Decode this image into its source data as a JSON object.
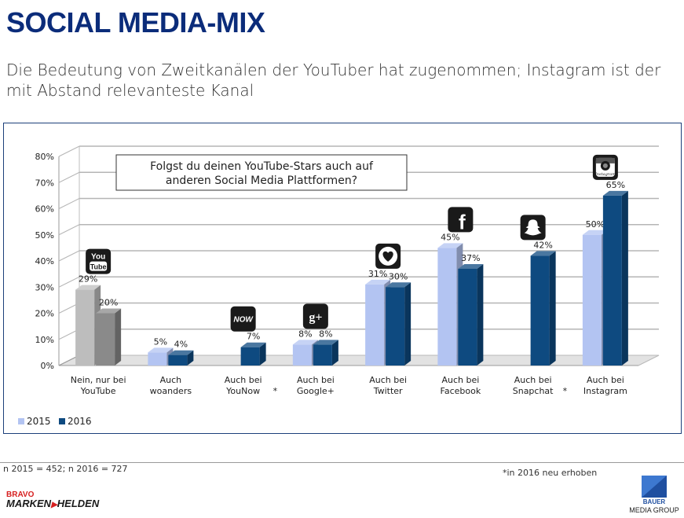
{
  "header": {
    "title": "SOCIAL MEDIA-MIX",
    "subtitle": "Die Bedeutung von Zweitkanälen der YouTuber hat zugenommen; Instagram ist der mit Abstand relevanteste Kanal"
  },
  "chart_data": {
    "type": "bar",
    "question": "Folgst du deinen YouTube-Stars auch auf anderen Social Media Plattformen?",
    "categories": [
      [
        "Nein, nur bei",
        "YouTube"
      ],
      [
        "Auch",
        "woanders"
      ],
      [
        "Auch bei",
        "YouNow"
      ],
      [
        "Auch bei",
        "Google+"
      ],
      [
        "Auch bei",
        "Twitter"
      ],
      [
        "Auch bei",
        "Facebook"
      ],
      [
        "Auch bei",
        "Snapchat"
      ],
      [
        "Auch bei",
        "Instagram"
      ]
    ],
    "category_asterisk": [
      false,
      false,
      true,
      false,
      false,
      false,
      true,
      false
    ],
    "series": [
      {
        "name": "2015",
        "values": [
          29,
          5,
          null,
          8,
          31,
          45,
          null,
          50
        ],
        "labels": [
          "29%",
          "5%",
          "",
          "8%",
          "31%",
          "45%",
          "",
          "50%"
        ]
      },
      {
        "name": "2016",
        "values": [
          20,
          4,
          7,
          8,
          30,
          37,
          42,
          65
        ],
        "labels": [
          "20%",
          "4%",
          "7%",
          "8%",
          "30%",
          "37%",
          "42%",
          "65%"
        ]
      }
    ],
    "ylim": [
      0,
      80
    ],
    "yticks": [
      "0%",
      "10%",
      "20%",
      "30%",
      "40%",
      "50%",
      "60%",
      "70%",
      "80%"
    ],
    "grid": true,
    "legend": "bottom-left",
    "icons": [
      "youtube-icon",
      null,
      "younow-icon",
      "google-plus-icon",
      "twitter-icon",
      "facebook-icon",
      "snapchat-icon",
      "instagram-icon"
    ],
    "icon_text": {
      "youtube-icon": [
        "You",
        "Tube"
      ],
      "younow-icon": "NOW",
      "google-plus-icon": "g+",
      "facebook-icon": "f",
      "instagram-icon": "Instagram"
    },
    "colors": {
      "2015": "#b3c4f2",
      "2016": "#0e4a80",
      "first_2015": "#bdbdbd",
      "first_2016": "#8a8a8a"
    }
  },
  "footer": {
    "sample": "n 2015 = 452; n 2016 = 727",
    "note": "*in 2016 neu erhoben",
    "brand_left": [
      "BRAVO",
      "MARKEN",
      "HELDEN"
    ],
    "brand_right": [
      "BAUER",
      "MEDIA GROUP"
    ]
  }
}
